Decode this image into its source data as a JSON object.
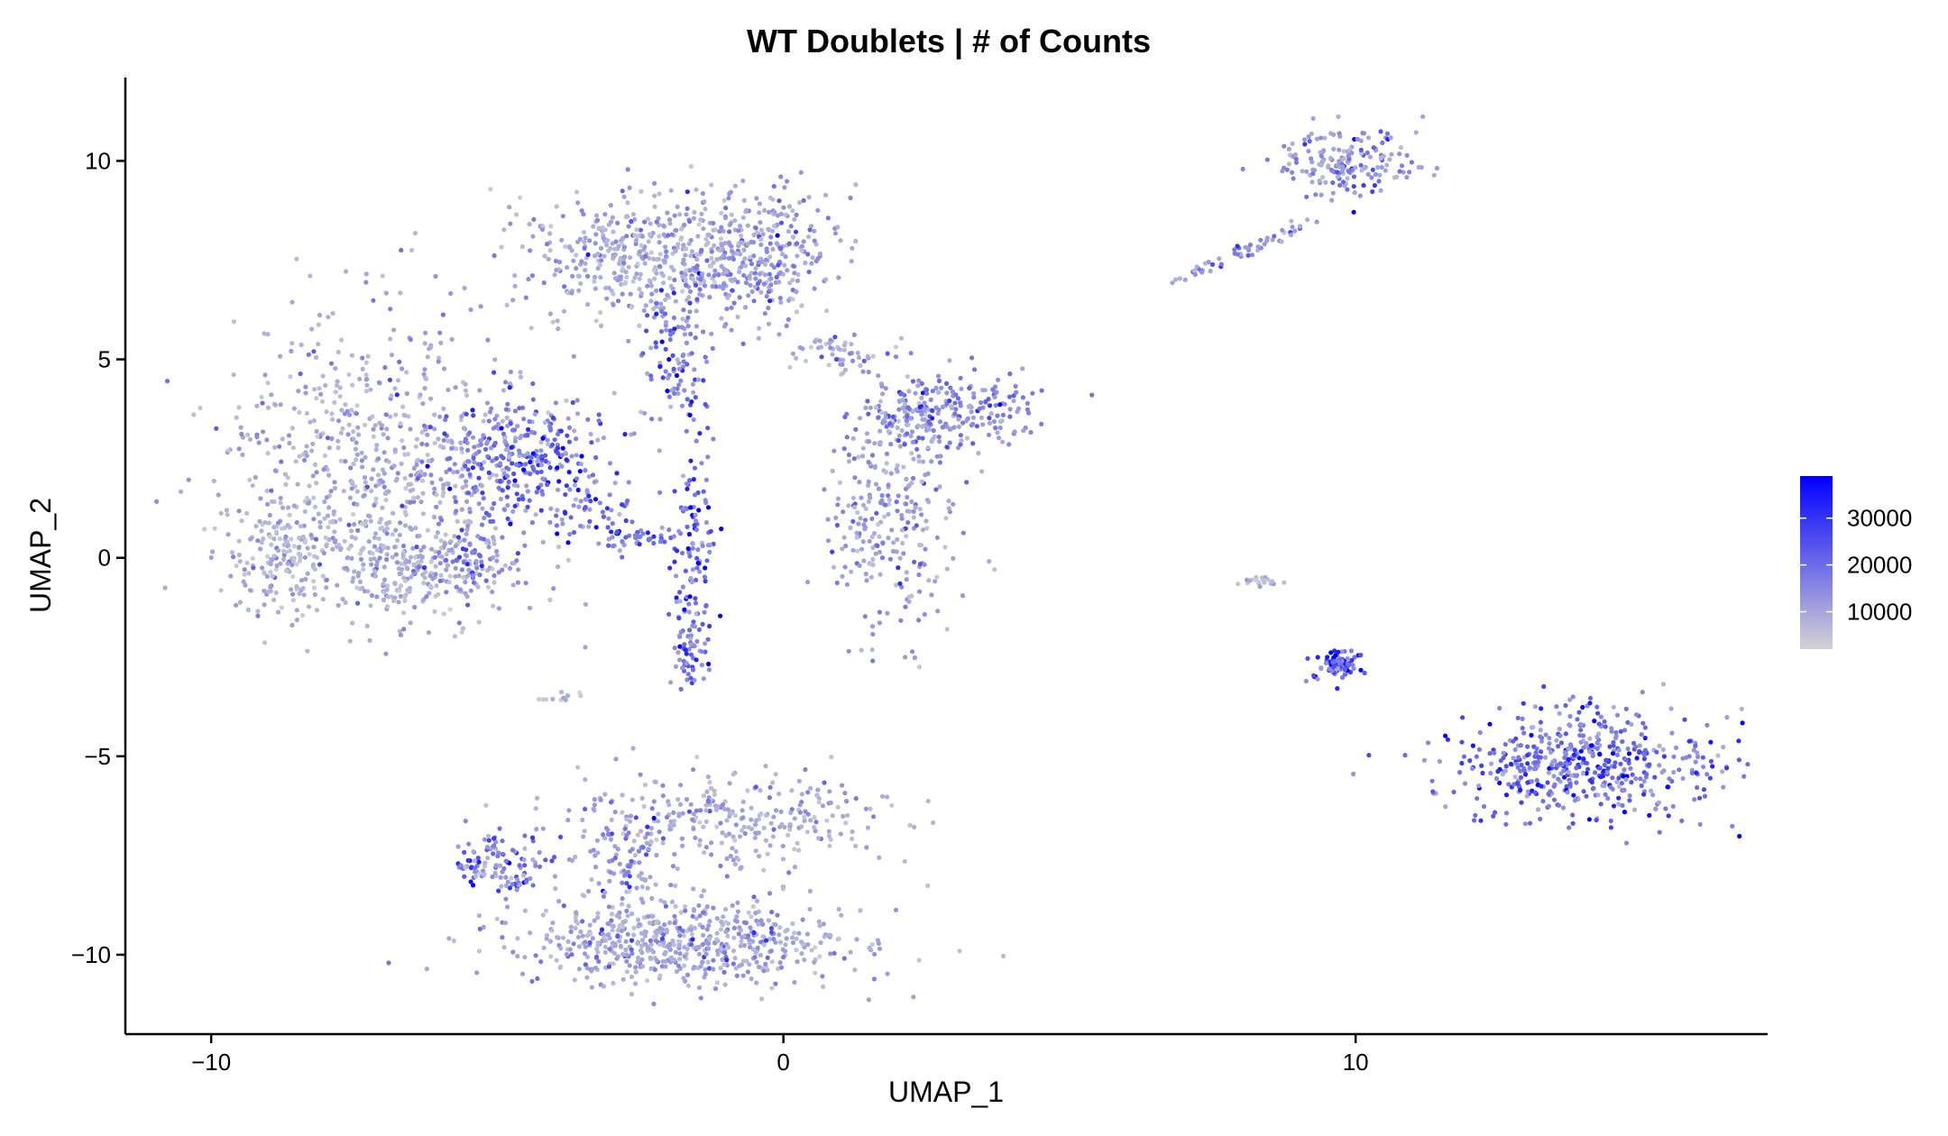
{
  "chart_data": {
    "type": "scatter",
    "title": "WT Doublets | # of Counts",
    "xlabel": "UMAP_1",
    "ylabel": "UMAP_2",
    "xlim": [
      -11.5,
      17.2
    ],
    "ylim": [
      -12.0,
      12.1
    ],
    "x_ticks": [
      -10,
      0,
      10
    ],
    "x_tick_labels": [
      "−10",
      "0",
      "10"
    ],
    "y_ticks": [
      -10,
      -5,
      0,
      5,
      10
    ],
    "y_tick_labels": [
      "−10",
      "−5",
      "0",
      "5",
      "10"
    ],
    "grid": false,
    "legend": {
      "placement": "right",
      "type": "colorbar",
      "title": "",
      "min_value": 2000,
      "max_value": 39000,
      "breaks": [
        10000,
        20000,
        30000
      ],
      "break_labels": [
        "10000",
        "20000",
        "30000"
      ],
      "color_low": "#d3d3d3",
      "color_high": "#0000ff"
    },
    "clusters": [
      {
        "id": "left-big",
        "cx": -7.0,
        "cy": 2.2,
        "sx": 1.4,
        "sy": 1.9,
        "n": 700,
        "mean_count": 9000
      },
      {
        "id": "left-tip",
        "cx": -8.6,
        "cy": 0.1,
        "sx": 0.5,
        "sy": 0.8,
        "n": 140,
        "mean_count": 6500
      },
      {
        "id": "left-bottom",
        "cx": -6.6,
        "cy": -0.4,
        "sx": 1.0,
        "sy": 0.55,
        "n": 200,
        "mean_count": 8000
      },
      {
        "id": "left-right-lobe",
        "cx": -4.7,
        "cy": 2.6,
        "sx": 0.7,
        "sy": 0.8,
        "n": 280,
        "mean_count": 17500
      },
      {
        "id": "left-lower-lobe",
        "cx": -5.6,
        "cy": 0.1,
        "sx": 0.35,
        "sy": 0.5,
        "n": 70,
        "mean_count": 15000
      },
      {
        "id": "top-center-left",
        "cx": -2.5,
        "cy": 7.6,
        "sx": 1.1,
        "sy": 0.75,
        "n": 420,
        "mean_count": 9000
      },
      {
        "id": "top-center-right",
        "cx": -0.4,
        "cy": 7.6,
        "sx": 0.65,
        "sy": 0.8,
        "n": 300,
        "mean_count": 11500
      },
      {
        "id": "top-stem",
        "cx": -1.9,
        "cy": 5.2,
        "sx": 0.3,
        "sy": 0.9,
        "n": 110,
        "mean_count": 16000
      },
      {
        "id": "mid-arc",
        "cx": -3.5,
        "cy": 1.3,
        "sx": 0.45,
        "sy": 0.5,
        "n": 60,
        "mean_count": 19000
      },
      {
        "id": "mid-arc-end",
        "cx": -2.6,
        "cy": 0.5,
        "sx": 0.35,
        "sy": 0.15,
        "n": 40,
        "mean_count": 17000
      },
      {
        "id": "center-stem",
        "cx": -1.6,
        "cy": 0.3,
        "sx": 0.22,
        "sy": 1.4,
        "n": 120,
        "mean_count": 21000
      },
      {
        "id": "center-stem-low",
        "cx": -1.6,
        "cy": -2.4,
        "sx": 0.15,
        "sy": 0.4,
        "n": 50,
        "mean_count": 16000
      },
      {
        "id": "right-mid-upper",
        "cx": 2.3,
        "cy": 3.5,
        "sx": 0.5,
        "sy": 0.5,
        "n": 160,
        "mean_count": 12000
      },
      {
        "id": "right-mid-lower",
        "cx": 1.9,
        "cy": 0.9,
        "sx": 0.6,
        "sy": 1.4,
        "n": 260,
        "mean_count": 11000
      },
      {
        "id": "right-mid-arm",
        "cx": 3.5,
        "cy": 3.8,
        "sx": 0.5,
        "sy": 0.4,
        "n": 110,
        "mean_count": 15500
      },
      {
        "id": "right-mid-tail",
        "cx": 0.9,
        "cy": 5.2,
        "sx": 0.4,
        "sy": 0.3,
        "n": 50,
        "mean_count": 8500
      },
      {
        "id": "bottom-main",
        "cx": -1.8,
        "cy": -9.7,
        "sx": 1.6,
        "sy": 0.55,
        "n": 600,
        "mean_count": 9500
      },
      {
        "id": "bottom-upper",
        "cx": -0.8,
        "cy": -6.6,
        "sx": 1.5,
        "sy": 0.6,
        "n": 300,
        "mean_count": 9000
      },
      {
        "id": "bottom-left-arm",
        "cx": -5.0,
        "cy": -7.5,
        "sx": 0.45,
        "sy": 0.4,
        "n": 90,
        "mean_count": 19000
      },
      {
        "id": "bottom-arm-link",
        "cx": -2.8,
        "cy": -7.7,
        "sx": 0.4,
        "sy": 0.9,
        "n": 90,
        "mean_count": 12000
      },
      {
        "id": "island-top-right",
        "cx": 9.8,
        "cy": 10.0,
        "sx": 0.6,
        "sy": 0.45,
        "n": 180,
        "mean_count": 12000
      },
      {
        "id": "island-pair",
        "cx": 9.7,
        "cy": -2.7,
        "sx": 0.22,
        "sy": 0.2,
        "n": 90,
        "mean_count": 22000
      },
      {
        "id": "island-right-dome",
        "cx": 14.0,
        "cy": -5.2,
        "sx": 1.15,
        "sy": 0.7,
        "n": 520,
        "mean_count": 17500
      },
      {
        "id": "island-small-streak",
        "cx": 8.3,
        "cy": -0.6,
        "sx": 0.25,
        "sy": 0.07,
        "n": 20,
        "mean_count": 6000
      }
    ],
    "streaks": [
      {
        "id": "upper-right-streak",
        "from": [
          6.8,
          6.9
        ],
        "to": [
          9.2,
          8.5
        ],
        "n": 55,
        "mean_count": 14000
      },
      {
        "id": "left-small-streak",
        "from": [
          -4.3,
          -3.6
        ],
        "to": [
          -3.6,
          -3.4
        ],
        "n": 12,
        "mean_count": 5000
      },
      {
        "id": "bottom-left-tail",
        "from": [
          -5.5,
          -7.8
        ],
        "to": [
          -4.5,
          -8.3
        ],
        "n": 25,
        "mean_count": 9000
      }
    ]
  }
}
